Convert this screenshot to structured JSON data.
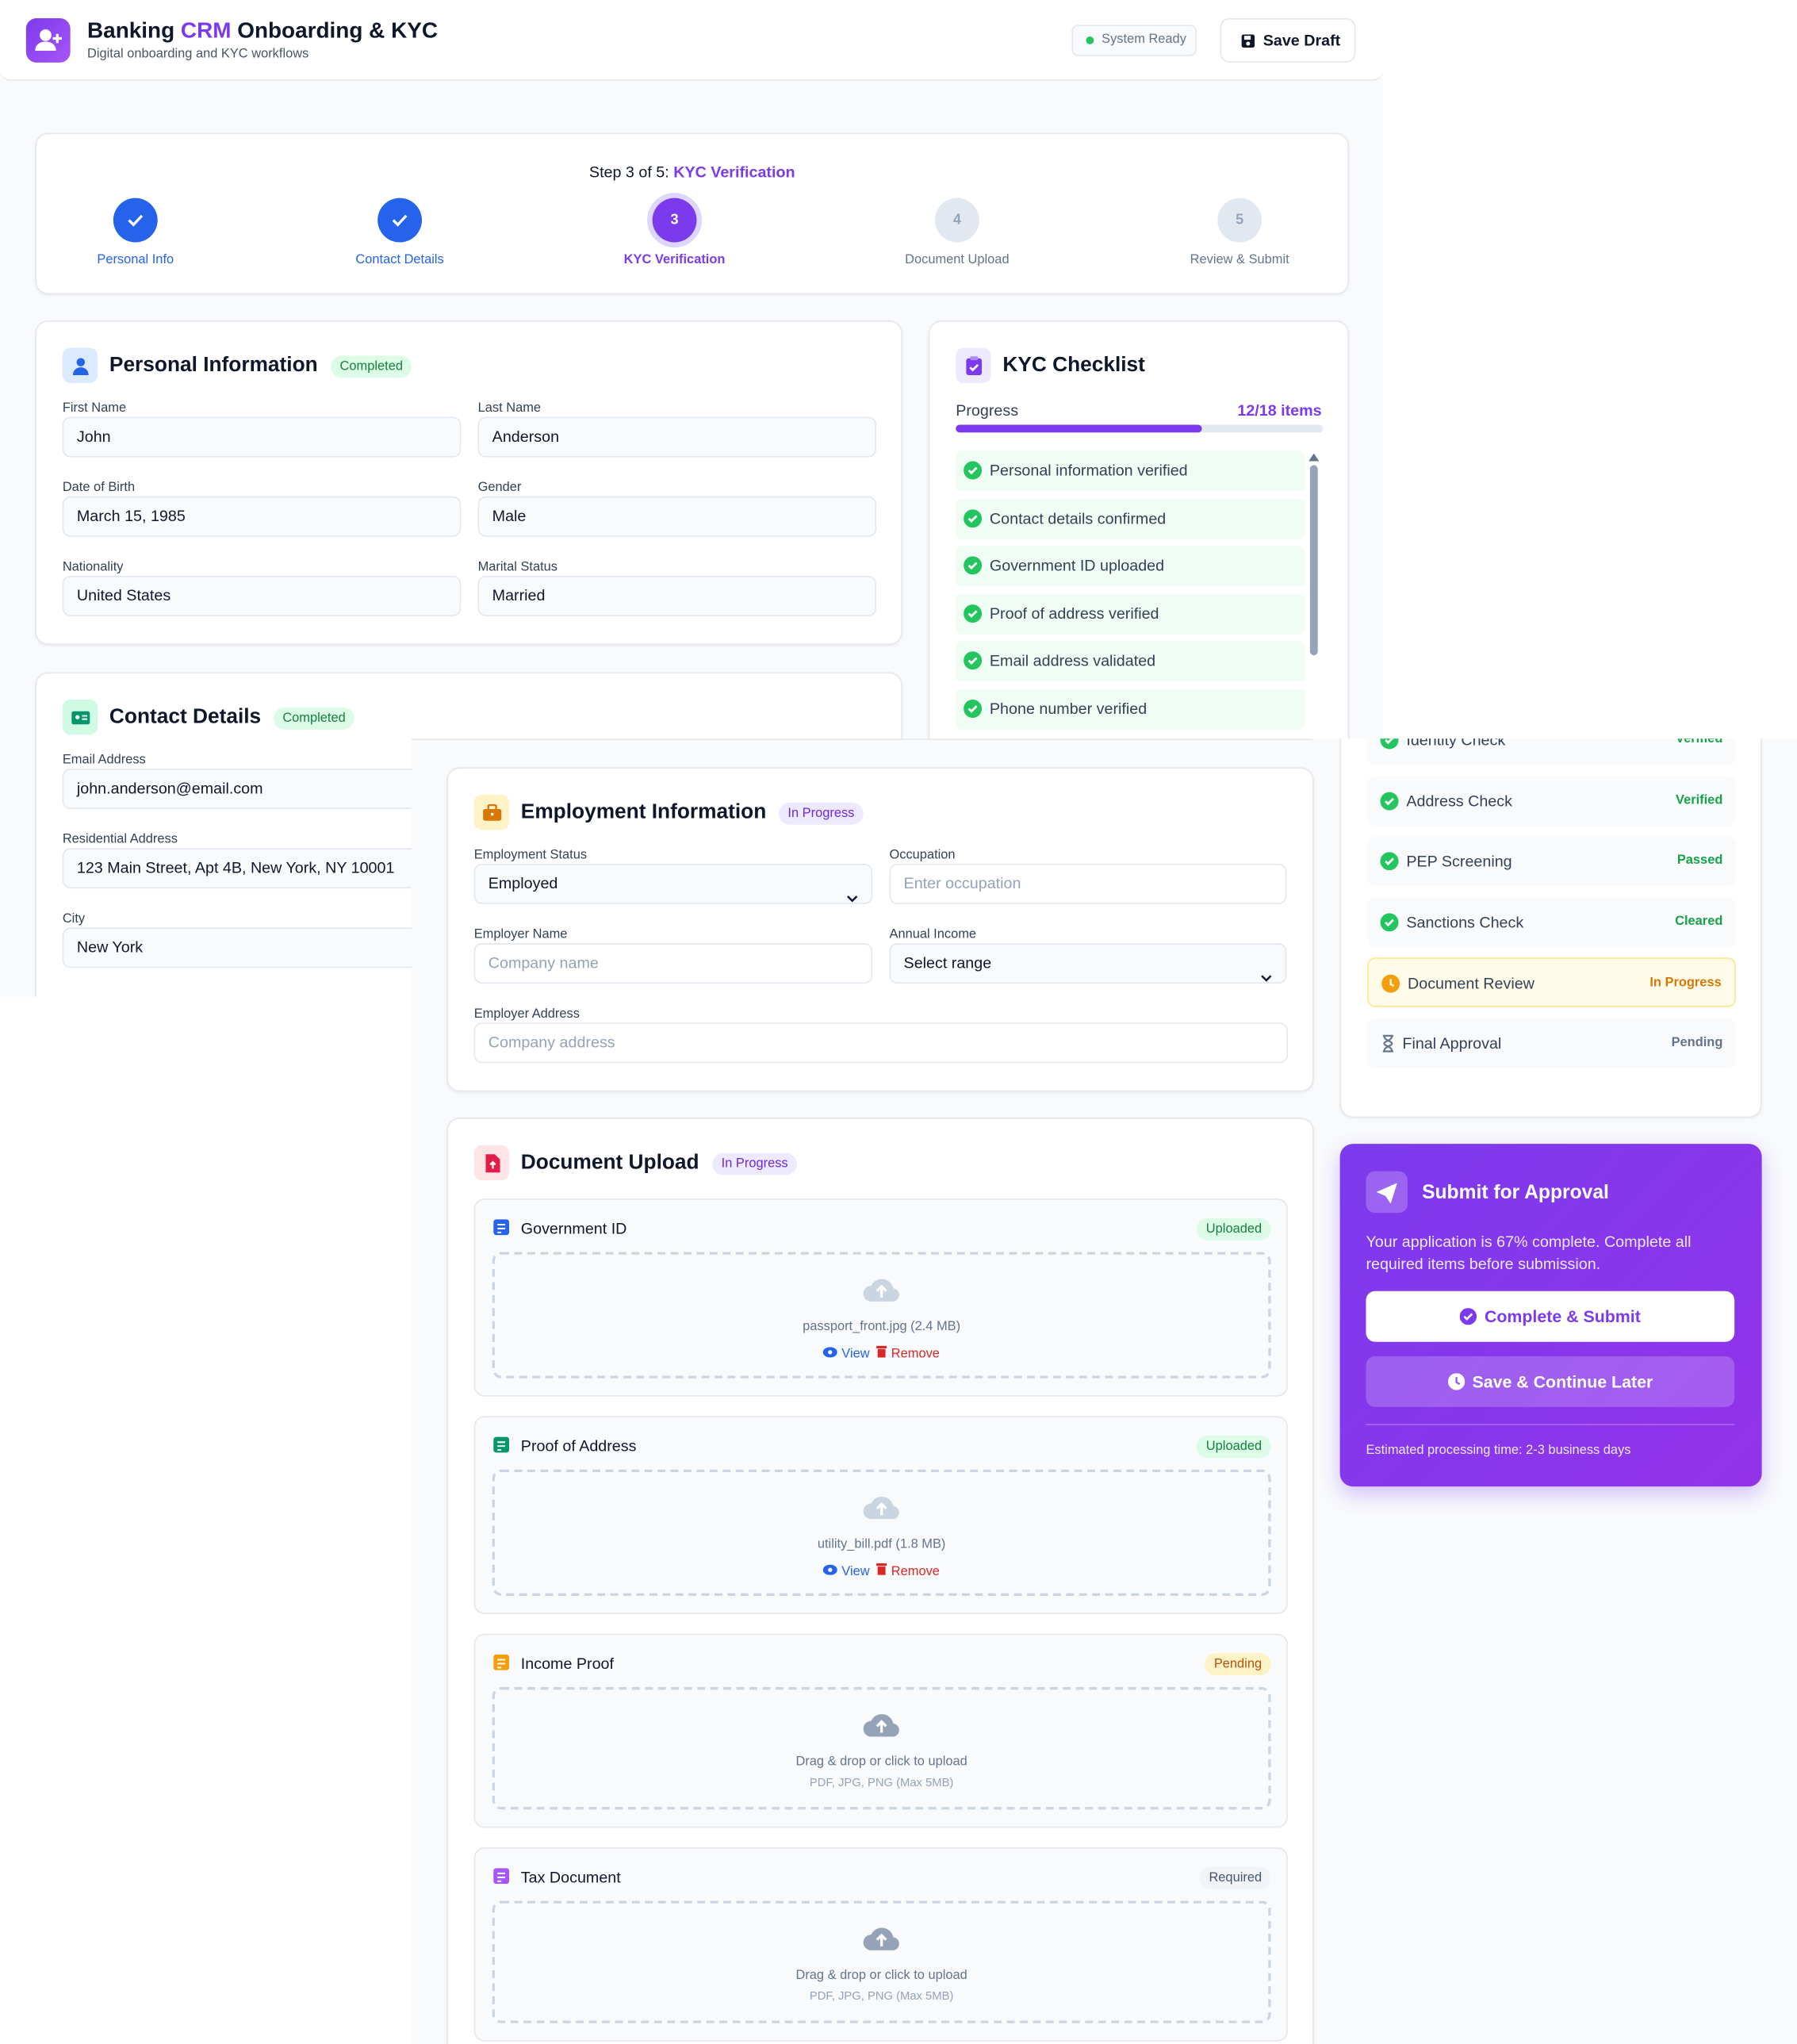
{
  "header": {
    "title_prefix": "Banking ",
    "title_highlight": "CRM",
    "title_suffix": " Onboarding & KYC",
    "subtitle": "Digital onboarding and KYC workflows",
    "status": "System Ready",
    "save_draft": "Save Draft"
  },
  "stepper": {
    "prefix": "Step 3 of 5:",
    "current": "KYC Verification",
    "steps": [
      {
        "label": "Personal Info",
        "state": "done"
      },
      {
        "label": "Contact Details",
        "state": "done"
      },
      {
        "number": "3",
        "label": "KYC Verification",
        "state": "current"
      },
      {
        "number": "4",
        "label": "Document Upload",
        "state": "pending"
      },
      {
        "number": "5",
        "label": "Review & Submit",
        "state": "pending"
      }
    ]
  },
  "personal_info": {
    "title": "Personal Information",
    "badge": "Completed",
    "fields": [
      {
        "label": "First Name",
        "value": "John"
      },
      {
        "label": "Last Name",
        "value": "Anderson"
      },
      {
        "label": "Date of Birth",
        "value": "March 15, 1985"
      },
      {
        "label": "Gender",
        "value": "Male"
      },
      {
        "label": "Nationality",
        "value": "United States"
      },
      {
        "label": "Marital Status",
        "value": "Married"
      }
    ]
  },
  "contact_details": {
    "title": "Contact Details",
    "badge": "Completed",
    "fields": [
      {
        "label": "Email Address",
        "value": "john.anderson@email.com"
      },
      {
        "label": "Residential Address",
        "value": "123 Main Street, Apt 4B, New York, NY 10001"
      },
      {
        "label": "City",
        "value": "New York"
      }
    ]
  },
  "kyc_checklist": {
    "title": "KYC Checklist",
    "progress_label": "Progress",
    "progress_count": "12/18 items",
    "items": [
      "Personal information verified",
      "Contact details confirmed",
      "Government ID uploaded",
      "Proof of address verified",
      "Email address validated",
      "Phone number verified"
    ]
  },
  "verification": {
    "items": [
      {
        "label": "Identity Check",
        "status": "Verified",
        "state": "done"
      },
      {
        "label": "Address Check",
        "status": "Verified",
        "state": "done"
      },
      {
        "label": "PEP Screening",
        "status": "Passed",
        "state": "done"
      },
      {
        "label": "Sanctions Check",
        "status": "Cleared",
        "state": "done"
      },
      {
        "label": "Document Review",
        "status": "In Progress",
        "state": "progress"
      },
      {
        "label": "Final Approval",
        "status": "Pending",
        "state": "pending"
      }
    ]
  },
  "employment": {
    "title": "Employment Information",
    "badge": "In Progress",
    "fields": [
      {
        "label": "Employment Status",
        "value": "Employed",
        "select": true
      },
      {
        "label": "Occupation",
        "placeholder": "Enter occupation"
      },
      {
        "label": "Employer Name",
        "placeholder": "Company name"
      },
      {
        "label": "Annual Income",
        "value": "Select range",
        "select": true
      },
      {
        "label": "Employer Address",
        "placeholder": "Company address"
      }
    ]
  },
  "documents": {
    "title": "Document Upload",
    "badge": "In Progress",
    "items": [
      {
        "title": "Government ID",
        "badge": "Uploaded",
        "state": "uploaded",
        "color": "#2563eb",
        "file": "passport_front.jpg (2.4 MB)",
        "view": "View",
        "remove": "Remove"
      },
      {
        "title": "Proof of Address",
        "badge": "Uploaded",
        "state": "uploaded",
        "color": "#059669",
        "file": "utility_bill.pdf (1.8 MB)",
        "view": "View",
        "remove": "Remove"
      },
      {
        "title": "Income Proof",
        "badge": "Pending",
        "state": "pending",
        "color": "#f59e0b",
        "hint": "Drag & drop or click to upload",
        "formats": "PDF, JPG, PNG (Max 5MB)"
      },
      {
        "title": "Tax Document",
        "badge": "Required",
        "state": "required",
        "color": "#a855f7",
        "hint": "Drag & drop or click to upload",
        "formats": "PDF, JPG, PNG (Max 5MB)"
      }
    ]
  },
  "submit": {
    "title": "Submit for Approval",
    "text": "Your application is 67% complete. Complete all required items before submission.",
    "primary": "Complete & Submit",
    "secondary": "Save & Continue Later",
    "footer": "Estimated processing time: 2-3 business days"
  }
}
